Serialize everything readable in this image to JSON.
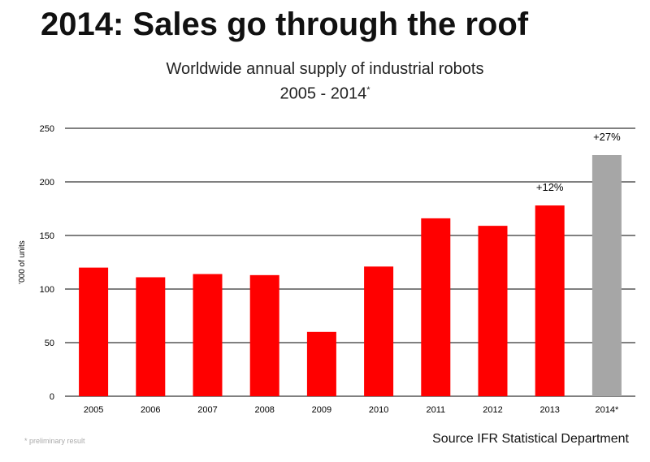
{
  "headline": "2014: Sales go through the roof",
  "subtitle": {
    "line1": "Worldwide annual supply of industrial robots",
    "line2": "2005 - 2014",
    "line2_marker": "*"
  },
  "footnote": "* preliminary result",
  "source": "Source IFR Statistical Department",
  "colors": {
    "actual": "#ff0000",
    "preliminary": "#a6a6a6",
    "grid": "#000000"
  },
  "chart_data": {
    "type": "bar",
    "title": "Worldwide annual supply of industrial robots",
    "subtitle": "2005 - 2014*",
    "xlabel": "",
    "ylabel": "'000 of units",
    "ylim": [
      0,
      250
    ],
    "yticks": [
      0,
      50,
      100,
      150,
      200,
      250
    ],
    "grid": true,
    "categories": [
      "2005",
      "2006",
      "2007",
      "2008",
      "2009",
      "2010",
      "2011",
      "2012",
      "2013",
      "2014*"
    ],
    "values": [
      120,
      111,
      114,
      113,
      60,
      121,
      166,
      159,
      178,
      225
    ],
    "bar_colors": [
      "#ff0000",
      "#ff0000",
      "#ff0000",
      "#ff0000",
      "#ff0000",
      "#ff0000",
      "#ff0000",
      "#ff0000",
      "#ff0000",
      "#a6a6a6"
    ],
    "annotations": [
      {
        "category": "2013",
        "text": "+12%"
      },
      {
        "category": "2014*",
        "text": "+27%"
      }
    ]
  }
}
